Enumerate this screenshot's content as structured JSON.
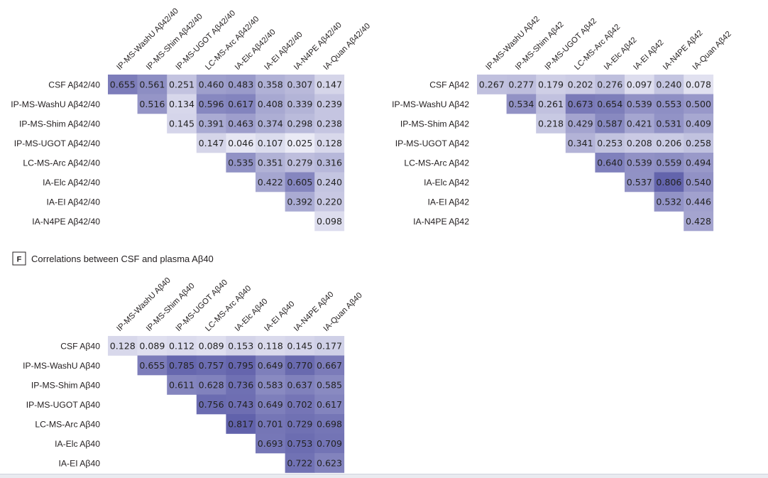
{
  "chart_data": [
    {
      "type": "heatmap",
      "title": "",
      "columns": [
        "IP-MS-WashU Aβ42/40",
        "IP-MS-Shim Aβ42/40",
        "IP-MS-UGOT Aβ42/40",
        "LC-MS-Arc Aβ42/40",
        "IA-Elc Aβ42/40",
        "IA-EI Aβ42/40",
        "IA-N4PE Aβ42/40",
        "IA-Quan Aβ42/40"
      ],
      "rows": [
        "CSF Aβ42/40",
        "IP-MS-WashU Aβ42/40",
        "IP-MS-Shim Aβ42/40",
        "IP-MS-UGOT Aβ42/40",
        "LC-MS-Arc Aβ42/40",
        "IA-Elc Aβ42/40",
        "IA-EI Aβ42/40",
        "IA-N4PE Aβ42/40"
      ],
      "values": [
        [
          "0.655",
          "0.561",
          "0.251",
          "0.460",
          "0.483",
          "0.358",
          "0.307",
          "0.147"
        ],
        [
          null,
          "0.516",
          "0.134",
          "0.596",
          "0.617",
          "0.408",
          "0.339",
          "0.239"
        ],
        [
          null,
          null,
          "0.145",
          "0.391",
          "0.463",
          "0.374",
          "0.298",
          "0.238"
        ],
        [
          null,
          null,
          null,
          "0.147",
          "0.046",
          "0.107",
          "0.025",
          "0.128"
        ],
        [
          null,
          null,
          null,
          null,
          "0.535",
          "0.351",
          "0.279",
          "0.316"
        ],
        [
          null,
          null,
          null,
          null,
          null,
          "0.422",
          "0.605",
          "0.240"
        ],
        [
          null,
          null,
          null,
          null,
          null,
          null,
          "0.392",
          "0.220"
        ],
        [
          null,
          null,
          null,
          null,
          null,
          null,
          null,
          "0.098"
        ]
      ]
    },
    {
      "type": "heatmap",
      "title": "",
      "columns": [
        "IP-MS-WashU Aβ42",
        "IP-MS-Shim Aβ42",
        "IP-MS-UGOT Aβ42",
        "LC-MS-Arc Aβ42",
        "IA-Elc Aβ42",
        "IA-EI Aβ42",
        "IA-N4PE Aβ42",
        "IA-Quan Aβ42"
      ],
      "rows": [
        "CSF Aβ42",
        "IP-MS-WashU Aβ42",
        "IP-MS-Shim Aβ42",
        "IP-MS-UGOT Aβ42",
        "LC-MS-Arc Aβ42",
        "IA-Elc Aβ42",
        "IA-EI Aβ42",
        "IA-N4PE Aβ42"
      ],
      "values": [
        [
          "0.267",
          "0.277",
          "0.179",
          "0.202",
          "0.276",
          "0.097",
          "0.240",
          "0.078"
        ],
        [
          null,
          "0.534",
          "0.261",
          "0.673",
          "0.654",
          "0.539",
          "0.553",
          "0.500"
        ],
        [
          null,
          null,
          "0.218",
          "0.429",
          "0.587",
          "0.421",
          "0.531",
          "0.409"
        ],
        [
          null,
          null,
          null,
          "0.341",
          "0.253",
          "0.208",
          "0.206",
          "0.258"
        ],
        [
          null,
          null,
          null,
          null,
          "0.640",
          "0.539",
          "0.559",
          "0.494"
        ],
        [
          null,
          null,
          null,
          null,
          null,
          "0.537",
          "0.806",
          "0.540"
        ],
        [
          null,
          null,
          null,
          null,
          null,
          null,
          "0.532",
          "0.446"
        ],
        [
          null,
          null,
          null,
          null,
          null,
          null,
          null,
          "0.428"
        ]
      ]
    },
    {
      "type": "heatmap",
      "panel_letter": "F",
      "title": "Correlations between CSF and plasma Aβ40",
      "columns": [
        "IP-MS-WashU Aβ40",
        "IP-MS-Shim Aβ40",
        "IP-MS-UGOT Aβ40",
        "LC-MS-Arc Aβ40",
        "IA-Elc Aβ40",
        "IA-EI Aβ40",
        "IA-N4PE Aβ40",
        "IA-Quan Aβ40"
      ],
      "rows": [
        "CSF Aβ40",
        "IP-MS-WashU Aβ40",
        "IP-MS-Shim Aβ40",
        "IP-MS-UGOT Aβ40",
        "LC-MS-Arc Aβ40",
        "IA-Elc Aβ40",
        "IA-EI Aβ40"
      ],
      "values": [
        [
          "0.128",
          "0.089",
          "0.112",
          "0.089",
          "0.153",
          "0.118",
          "0.145",
          "0.177"
        ],
        [
          null,
          "0.655",
          "0.785",
          "0.757",
          "0.795",
          "0.649",
          "0.770",
          "0.667"
        ],
        [
          null,
          null,
          "0.611",
          "0.628",
          "0.736",
          "0.583",
          "0.637",
          "0.585"
        ],
        [
          null,
          null,
          null,
          "0.756",
          "0.743",
          "0.649",
          "0.702",
          "0.617"
        ],
        [
          null,
          null,
          null,
          null,
          "0.817",
          "0.701",
          "0.729",
          "0.698"
        ],
        [
          null,
          null,
          null,
          null,
          null,
          "0.693",
          "0.753",
          "0.709"
        ],
        [
          null,
          null,
          null,
          null,
          null,
          null,
          "0.722",
          "0.623"
        ]
      ]
    }
  ],
  "colors": {
    "low": "#eeeef7",
    "high": "#5b5ca8",
    "text": "#231f20",
    "panel_box": "#231f20"
  }
}
